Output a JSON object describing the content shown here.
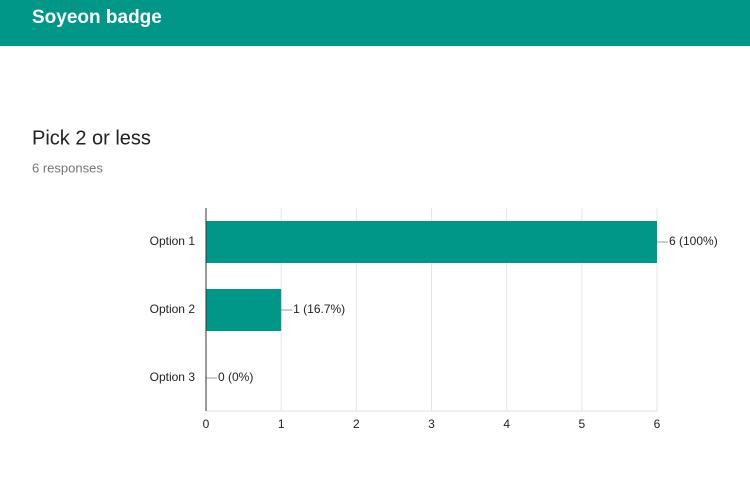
{
  "header": {
    "title": "Soyeon badge"
  },
  "chart_data": {
    "type": "bar",
    "orientation": "horizontal",
    "title": "Pick 2 or less",
    "subtitle": "6 responses",
    "categories": [
      "Option 1",
      "Option 2",
      "Option 3"
    ],
    "values": [
      6,
      1,
      0
    ],
    "value_labels": [
      "6 (100%)",
      "1 (16.7%)",
      "0 (0%)"
    ],
    "color": "#009688",
    "xlim": [
      0,
      6
    ],
    "xticks": [
      0,
      1,
      2,
      3,
      4,
      5,
      6
    ],
    "grid": true
  }
}
